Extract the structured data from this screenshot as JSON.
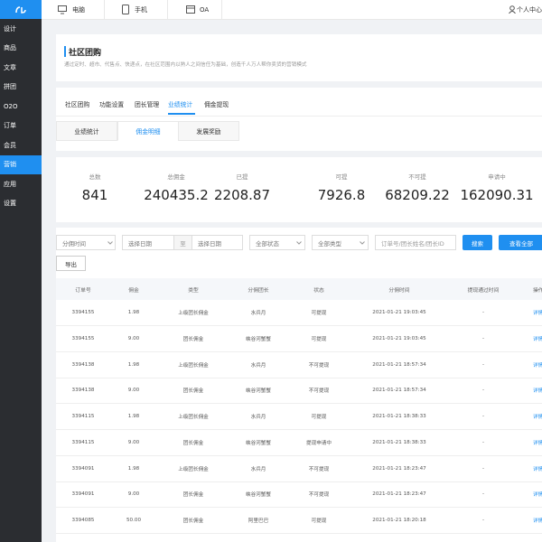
{
  "sidebar": {
    "menu": [
      "设计",
      "商品",
      "文章",
      "拼团",
      "O2O",
      "订单",
      "会员",
      "营销",
      "应用",
      "设置"
    ]
  },
  "topbar": {
    "tabs": [
      "电脑",
      "手机",
      "OA"
    ],
    "user": "个人中心"
  },
  "header": {
    "title": "社区团购",
    "subtitle": "通过定时、超市、代售点、快递点，在社区范围内以熟人之间信任为基础，创造千人万人帮你卖货的营销模式"
  },
  "tabs": [
    "社区团购",
    "功能设置",
    "团长管理",
    "业绩统计",
    "佣金提现"
  ],
  "subtabs": [
    "业绩统计",
    "佣金明细",
    "发展奖励"
  ],
  "stats": [
    {
      "label": "总数",
      "value": "841"
    },
    {
      "label": "总佣金",
      "value": "240435.2"
    },
    {
      "label": "已提",
      "value": "2208.87"
    },
    {
      "label": "可提",
      "value": "7926.8"
    },
    {
      "label": "不可提",
      "value": "68209.22"
    },
    {
      "label": "申请中",
      "value": "162090.31"
    }
  ],
  "filters": {
    "time": "分佣时间",
    "start": "选择日期",
    "to": "至",
    "end": "选择日期",
    "status": "全部状态",
    "type": "全部类型",
    "keyword": "订单号/团长姓名/团长ID",
    "search": "搜索",
    "view_all": "查看全部",
    "export": "导出"
  },
  "table": {
    "columns": [
      "订单号",
      "佣金",
      "类型",
      "分佣团长",
      "状态",
      "分佣时间",
      "提现通过时间",
      "操作"
    ],
    "rows": [
      [
        "3394155",
        "1.98",
        "上级团长佣金",
        "水兵月",
        "可提现",
        "2021-01-21 19:03:45",
        "-",
        "详情"
      ],
      [
        "3394155",
        "9.00",
        "团长佣金",
        "峡谷河蟹蟹",
        "可提现",
        "2021-01-21 19:03:45",
        "-",
        "详情"
      ],
      [
        "3394138",
        "1.98",
        "上级团长佣金",
        "水兵月",
        "不可提现",
        "2021-01-21 18:57:34",
        "-",
        "详情"
      ],
      [
        "3394138",
        "9.00",
        "团长佣金",
        "峡谷河蟹蟹",
        "不可提现",
        "2021-01-21 18:57:34",
        "-",
        "详情"
      ],
      [
        "3394115",
        "1.98",
        "上级团长佣金",
        "水兵月",
        "可提现",
        "2021-01-21 18:38:33",
        "-",
        "详情"
      ],
      [
        "3394115",
        "9.00",
        "团长佣金",
        "峡谷河蟹蟹",
        "提现申请中",
        "2021-01-21 18:38:33",
        "-",
        "详情"
      ],
      [
        "3394091",
        "1.98",
        "上级团长佣金",
        "水兵月",
        "不可提现",
        "2021-01-21 18:23:47",
        "-",
        "详情"
      ],
      [
        "3394091",
        "9.00",
        "团长佣金",
        "峡谷河蟹蟹",
        "不可提现",
        "2021-01-21 18:23:47",
        "-",
        "详情"
      ],
      [
        "3394085",
        "50.00",
        "团长佣金",
        "阿里巴巴",
        "可提现",
        "2021-01-21 18:20:18",
        "-",
        "详情"
      ]
    ]
  }
}
